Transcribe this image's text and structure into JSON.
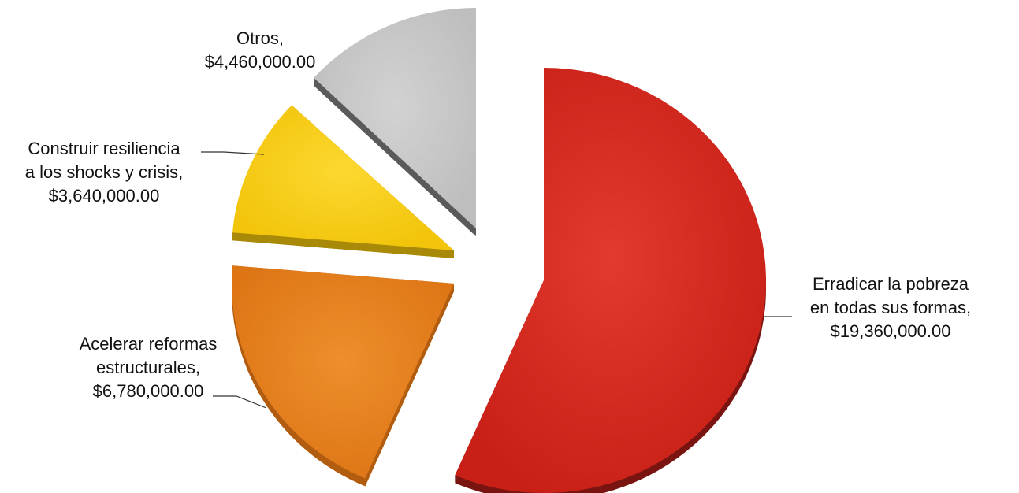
{
  "chart_data": {
    "type": "pie",
    "style": "3d-exploded",
    "title": "",
    "currency_format": "$#,##0.00",
    "slices": [
      {
        "name": "Erradicar la pobreza en todas sus formas",
        "value": 19360000,
        "label_lines": [
          "Erradicar la pobreza",
          "en todas sus formas,",
          "$19,360,000.00"
        ],
        "color": "#D92A20",
        "side_color": "#7A1410"
      },
      {
        "name": "Acelerar reformas estructurales",
        "value": 6780000,
        "label_lines": [
          "Acelerar reformas",
          "estructurales,",
          "$6,780,000.00"
        ],
        "color": "#E8801E",
        "side_color": "#B25C10"
      },
      {
        "name": "Construir resiliencia a los shocks y crisis",
        "value": 3640000,
        "label_lines": [
          "Construir resiliencia",
          "a los shocks y crisis,",
          "$3,640,000.00"
        ],
        "color": "#FAD015",
        "side_color": "#A88A08"
      },
      {
        "name": "Otros",
        "value": 4460000,
        "label_lines": [
          "Otros,",
          "$4,460,000.00"
        ],
        "color": "#C9C9C9",
        "side_color": "#5A5A5A"
      }
    ]
  }
}
